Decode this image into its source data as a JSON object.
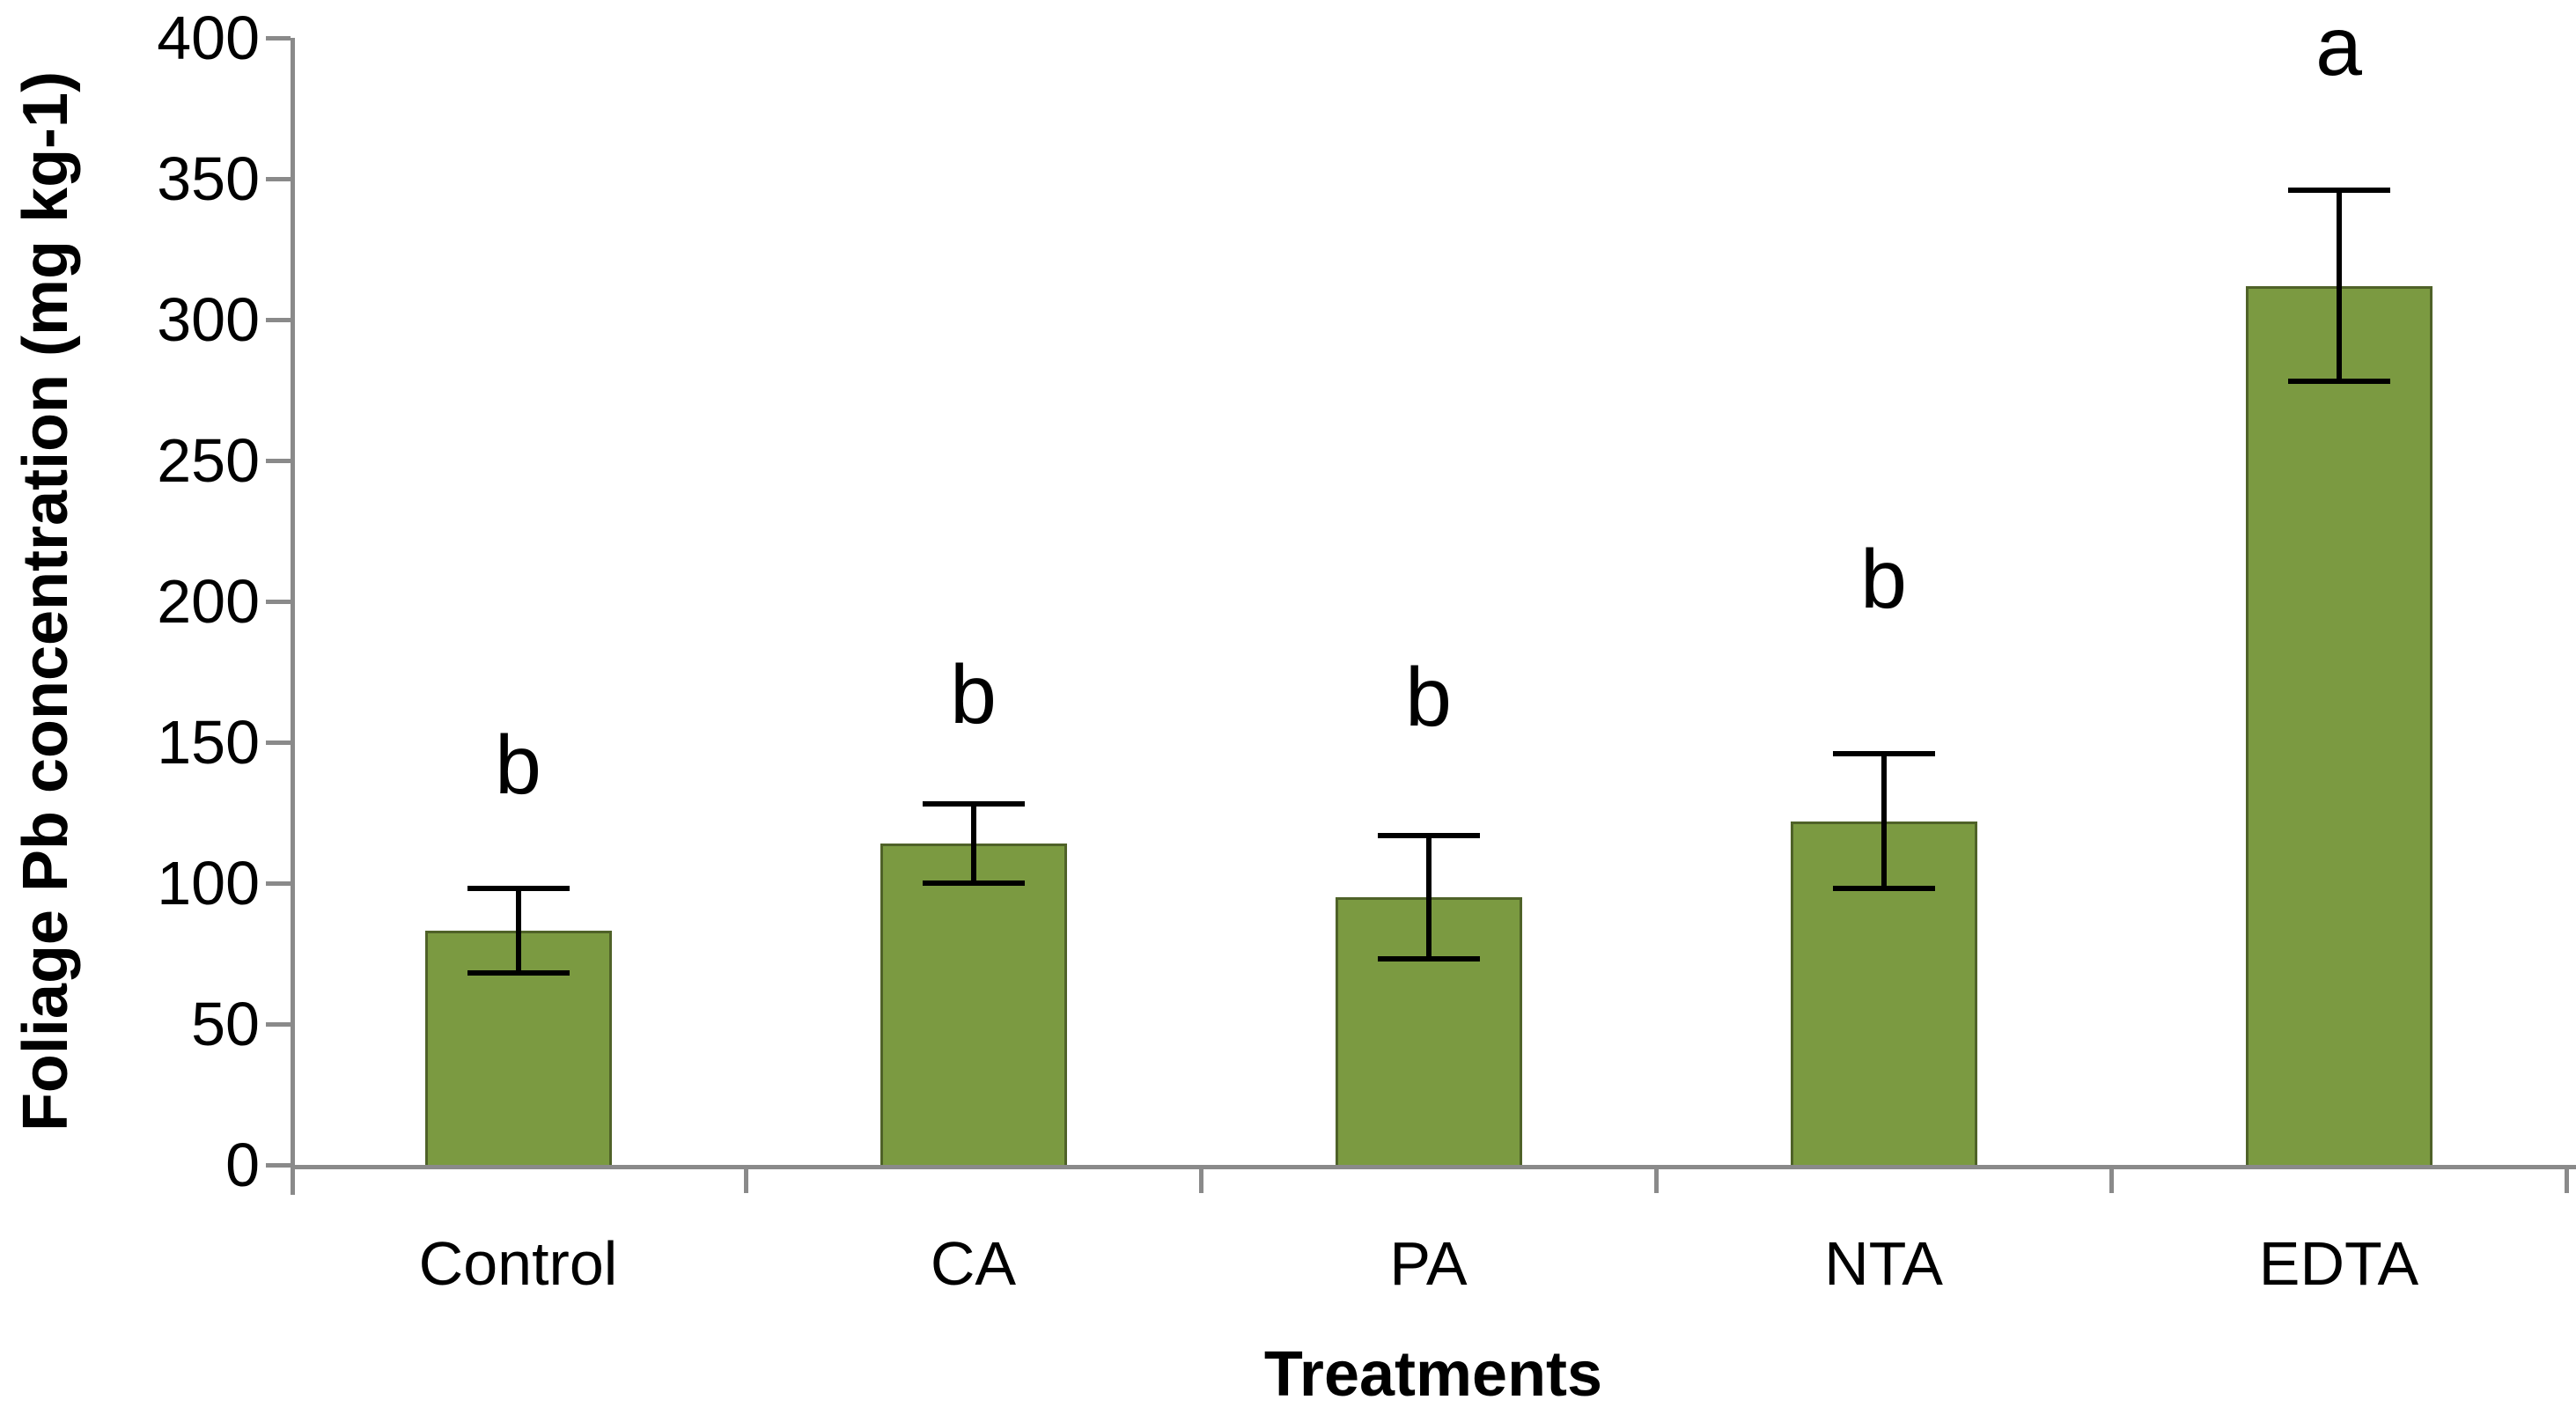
{
  "chart_data": {
    "type": "bar",
    "title": "",
    "xlabel": "Treatments",
    "ylabel": "Foliage Pb concentration (mg kg-1)",
    "categories": [
      "Control",
      "CA",
      "PA",
      "NTA",
      "EDTA"
    ],
    "values": [
      83,
      114,
      95,
      122,
      312
    ],
    "errors": [
      15,
      14,
      22,
      24,
      34
    ],
    "sig_letters": [
      "b",
      "b",
      "b",
      "b",
      "a"
    ],
    "letter_y": [
      135,
      160,
      159,
      201,
      390
    ],
    "yticks": [
      "0",
      "50",
      "100",
      "150",
      "200",
      "250",
      "300",
      "350",
      "400"
    ],
    "ytick_values": [
      0,
      50,
      100,
      150,
      200,
      250,
      300,
      350,
      400
    ],
    "ylim": [
      0,
      400
    ],
    "grid": "off",
    "legend": "none",
    "bar_fill_color": "#7B9A41",
    "bar_border_color": "#4F6228",
    "axis_color": "#8a8a8a",
    "error_bar_color": "#000000"
  }
}
